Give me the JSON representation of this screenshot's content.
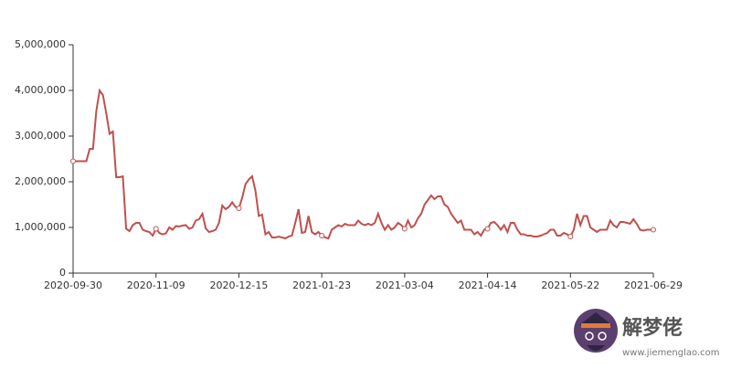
{
  "chart_data": {
    "type": "line",
    "categories": [
      "2020-09-30",
      null,
      null,
      null,
      null,
      null,
      null,
      null,
      null,
      null,
      null,
      null,
      null,
      null,
      null,
      null,
      null,
      null,
      null,
      null,
      null,
      null,
      null,
      null,
      null,
      "2020-11-09",
      null,
      null,
      null,
      null,
      null,
      null,
      null,
      null,
      null,
      null,
      null,
      null,
      null,
      null,
      null,
      null,
      null,
      null,
      null,
      null,
      null,
      null,
      null,
      null,
      "2020-12-15",
      null,
      null,
      null,
      null,
      null,
      null,
      null,
      null,
      null,
      null,
      null,
      null,
      null,
      null,
      null,
      null,
      null,
      null,
      null,
      null,
      null,
      null,
      null,
      null,
      "2021-01-23",
      null,
      null,
      null,
      null,
      null,
      null,
      null,
      null,
      null,
      null,
      null,
      null,
      null,
      null,
      null,
      null,
      null,
      null,
      null,
      null,
      null,
      null,
      null,
      null,
      "2021-03-04",
      null,
      null,
      null,
      null,
      null,
      null,
      null,
      null,
      null,
      null,
      null,
      null,
      null,
      null,
      null,
      null,
      null,
      null,
      null,
      null,
      null,
      null,
      null,
      null,
      "2021-04-14",
      null,
      null,
      null,
      null,
      null,
      null,
      null,
      null,
      null,
      null,
      null,
      null,
      null,
      null,
      null,
      null,
      null,
      null,
      null,
      null,
      null,
      null,
      null,
      null,
      "2021-05-22",
      null,
      null,
      null,
      null,
      null,
      null,
      null,
      null,
      null,
      null,
      null,
      null,
      null,
      null,
      null,
      null,
      null,
      null,
      null,
      null,
      null,
      null,
      null,
      null,
      "2021-06-29"
    ],
    "values": [
      2450000,
      2450000,
      2450000,
      2450000,
      2450000,
      2720000,
      2720000,
      3550000,
      4000000,
      3900000,
      3500000,
      3050000,
      3100000,
      2100000,
      2100000,
      2120000,
      970000,
      920000,
      1050000,
      1100000,
      1100000,
      950000,
      920000,
      900000,
      820000,
      970000,
      880000,
      850000,
      870000,
      1000000,
      950000,
      1030000,
      1020000,
      1040000,
      1050000,
      970000,
      1000000,
      1150000,
      1180000,
      1300000,
      980000,
      900000,
      920000,
      950000,
      1100000,
      1480000,
      1400000,
      1450000,
      1550000,
      1450000,
      1420000,
      1650000,
      1950000,
      2050000,
      2120000,
      1800000,
      1250000,
      1280000,
      850000,
      900000,
      780000,
      780000,
      800000,
      780000,
      760000,
      800000,
      820000,
      1100000,
      1400000,
      880000,
      900000,
      1250000,
      900000,
      850000,
      900000,
      820000,
      780000,
      760000,
      950000,
      1000000,
      1050000,
      1020000,
      1080000,
      1050000,
      1050000,
      1050000,
      1150000,
      1080000,
      1050000,
      1080000,
      1050000,
      1100000,
      1300000,
      1100000,
      950000,
      1050000,
      950000,
      1000000,
      1100000,
      1050000,
      970000,
      1150000,
      1000000,
      1050000,
      1200000,
      1300000,
      1500000,
      1600000,
      1700000,
      1620000,
      1680000,
      1680000,
      1500000,
      1450000,
      1300000,
      1200000,
      1100000,
      1150000,
      950000,
      950000,
      950000,
      850000,
      900000,
      820000,
      950000,
      970000,
      1100000,
      1120000,
      1050000,
      950000,
      1050000,
      900000,
      1100000,
      1100000,
      950000,
      850000,
      850000,
      820000,
      820000,
      800000,
      800000,
      820000,
      850000,
      880000,
      950000,
      950000,
      820000,
      820000,
      880000,
      850000,
      800000,
      950000,
      1300000,
      1050000,
      1250000,
      1250000,
      1000000,
      950000,
      900000,
      950000,
      950000,
      950000,
      1150000,
      1050000,
      1000000,
      1120000,
      1120000,
      1100000,
      1080000,
      1180000,
      1080000,
      950000,
      930000,
      950000,
      950000,
      950000
    ],
    "color": "#c0504d",
    "ylim": [
      0,
      5000000
    ],
    "yticks": [
      0,
      {
        "value": 1000000,
        "label": "1,000,000"
      },
      {
        "value": 2000000,
        "label": "2,000,000"
      },
      {
        "value": 3000000,
        "label": "3,000,000"
      },
      {
        "value": 4000000,
        "label": "4,000,000"
      },
      {
        "value": 5000000,
        "label": "5,000,000"
      }
    ],
    "grid": false
  },
  "watermark": {
    "name": "解梦佬",
    "url": "www.jiemenglao.com"
  }
}
